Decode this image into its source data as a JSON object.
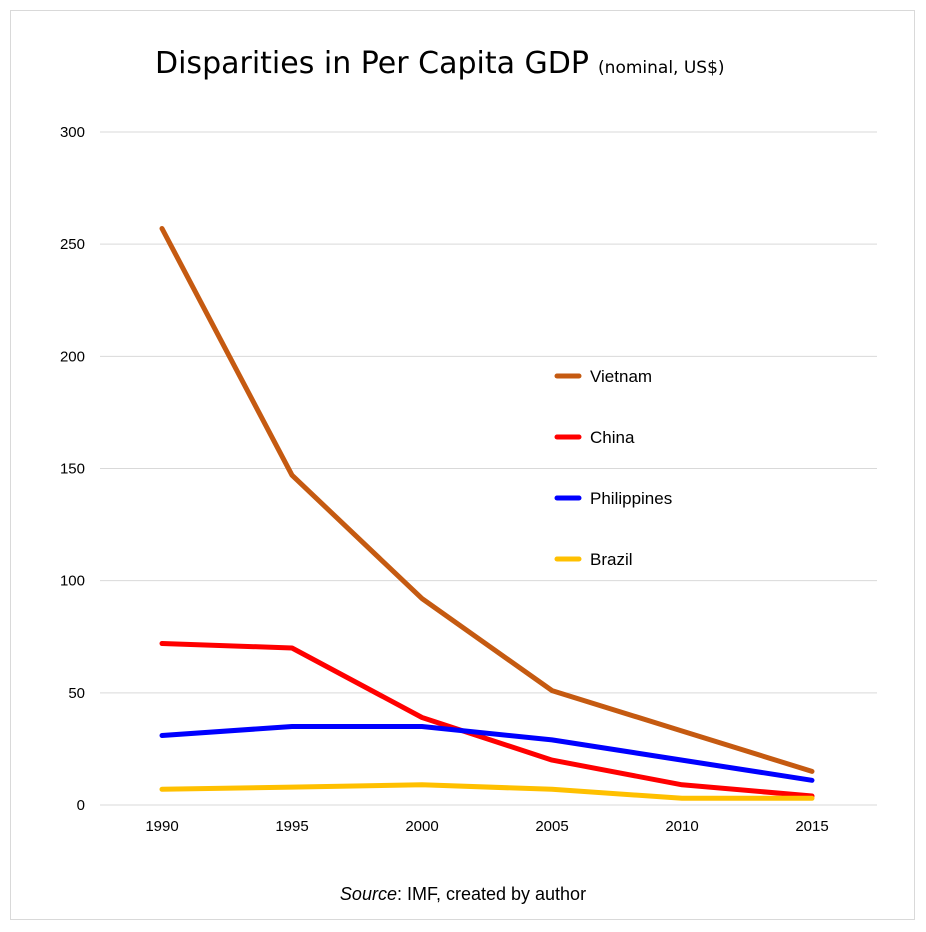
{
  "chart_data": {
    "type": "line",
    "title": "Disparities in Per Capita GDP",
    "subtitle": "(nominal, US$)",
    "x": [
      "1990",
      "1995",
      "2000",
      "2005",
      "2010",
      "2015"
    ],
    "ylim": [
      0,
      300
    ],
    "yticks": [
      "0",
      "50",
      "100",
      "150",
      "200",
      "250",
      "300"
    ],
    "grid": true,
    "legend_position": "right-center",
    "series": [
      {
        "name": "Vietnam",
        "color": "#C55A11",
        "values": [
          257,
          147,
          92,
          51,
          33,
          15
        ]
      },
      {
        "name": "China",
        "color": "#FF0000",
        "values": [
          72,
          70,
          39,
          20,
          9,
          4
        ]
      },
      {
        "name": "Philippines",
        "color": "#0000FF",
        "values": [
          31,
          35,
          35,
          29,
          20,
          11
        ]
      },
      {
        "name": "Brazil",
        "color": "#FFC000",
        "values": [
          7,
          8,
          9,
          7,
          3,
          3
        ]
      }
    ]
  },
  "source": {
    "label": "Source",
    "text": ": IMF, created by author"
  }
}
